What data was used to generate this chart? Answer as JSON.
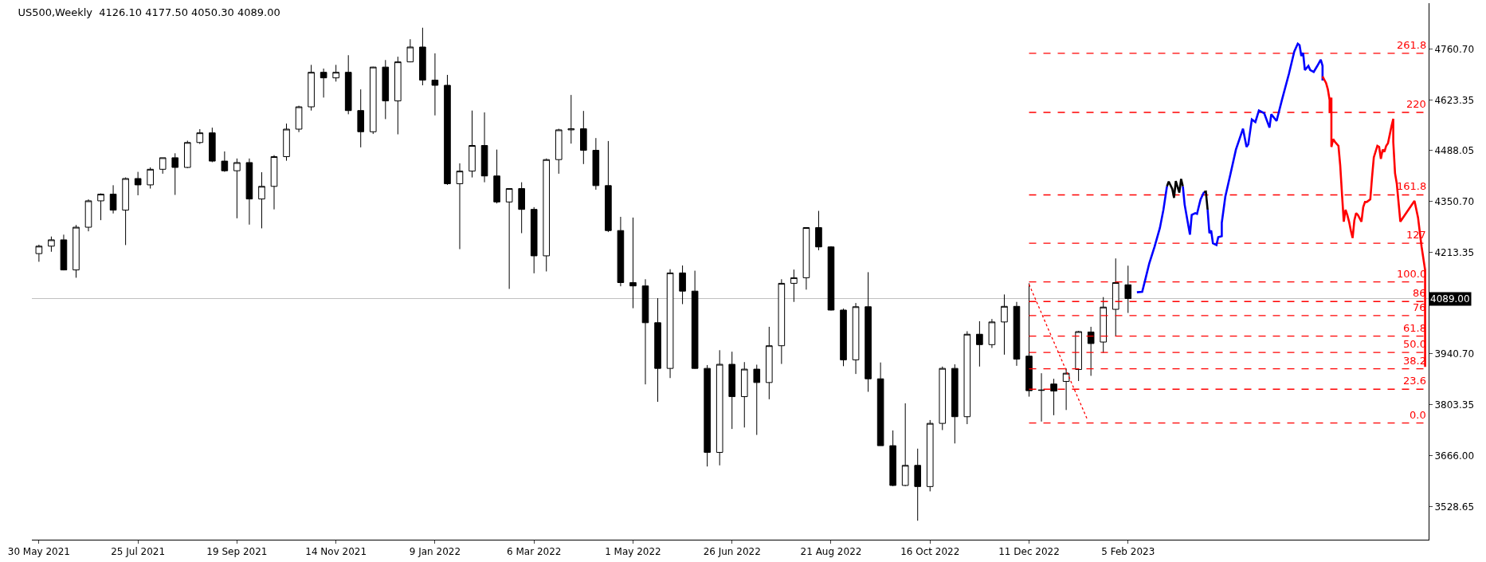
{
  "chart_data": {
    "type": "candlestick",
    "title": "US500,Weekly  4126.10 4177.50 4050.30 4089.00",
    "x": [
      "2021-05-30",
      "2021-06-06",
      "2021-06-13",
      "2021-06-20",
      "2021-06-27",
      "2021-07-04",
      "2021-07-11",
      "2021-07-18",
      "2021-07-25",
      "2021-08-01",
      "2021-08-08",
      "2021-08-15",
      "2021-08-22",
      "2021-08-29",
      "2021-09-05",
      "2021-09-12",
      "2021-09-19",
      "2021-09-26",
      "2021-10-03",
      "2021-10-10",
      "2021-10-17",
      "2021-10-24",
      "2021-10-31",
      "2021-11-07",
      "2021-11-14",
      "2021-11-21",
      "2021-11-28",
      "2021-12-05",
      "2021-12-12",
      "2021-12-19",
      "2021-12-26",
      "2022-01-02",
      "2022-01-09",
      "2022-01-16",
      "2022-01-23",
      "2022-01-30",
      "2022-02-06",
      "2022-02-13",
      "2022-02-20",
      "2022-02-27",
      "2022-03-06",
      "2022-03-13",
      "2022-03-20",
      "2022-03-27",
      "2022-04-03",
      "2022-04-10",
      "2022-04-17",
      "2022-04-24",
      "2022-05-01",
      "2022-05-08",
      "2022-05-15",
      "2022-05-22",
      "2022-05-29",
      "2022-06-05",
      "2022-06-12",
      "2022-06-19",
      "2022-06-26",
      "2022-07-03",
      "2022-07-10",
      "2022-07-17",
      "2022-07-24",
      "2022-07-31",
      "2022-08-07",
      "2022-08-14",
      "2022-08-21",
      "2022-08-28",
      "2022-09-04",
      "2022-09-11",
      "2022-09-18",
      "2022-09-25",
      "2022-10-02",
      "2022-10-09",
      "2022-10-16",
      "2022-10-23",
      "2022-10-30",
      "2022-11-06",
      "2022-11-13",
      "2022-11-20",
      "2022-11-27",
      "2022-12-04",
      "2022-12-11",
      "2022-12-18",
      "2022-12-25",
      "2023-01-01",
      "2023-01-08",
      "2023-01-15",
      "2023-01-22",
      "2023-01-29",
      "2023-02-05"
    ],
    "ohlc": [
      [
        4210,
        4234,
        4188,
        4230
      ],
      [
        4230,
        4256,
        4215,
        4247
      ],
      [
        4247,
        4261,
        4165,
        4166
      ],
      [
        4166,
        4287,
        4145,
        4281
      ],
      [
        4281,
        4356,
        4270,
        4352
      ],
      [
        4352,
        4372,
        4300,
        4370
      ],
      [
        4370,
        4394,
        4318,
        4327
      ],
      [
        4327,
        4415,
        4233,
        4412
      ],
      [
        4412,
        4430,
        4367,
        4395
      ],
      [
        4395,
        4442,
        4385,
        4437
      ],
      [
        4437,
        4468,
        4425,
        4468
      ],
      [
        4468,
        4480,
        4368,
        4442
      ],
      [
        4442,
        4514,
        4440,
        4509
      ],
      [
        4509,
        4545,
        4505,
        4535
      ],
      [
        4535,
        4549,
        4456,
        4459
      ],
      [
        4459,
        4485,
        4430,
        4433
      ],
      [
        4433,
        4466,
        4305,
        4455
      ],
      [
        4455,
        4466,
        4288,
        4357
      ],
      [
        4357,
        4429,
        4278,
        4391
      ],
      [
        4391,
        4475,
        4329,
        4471
      ],
      [
        4471,
        4560,
        4460,
        4545
      ],
      [
        4545,
        4608,
        4537,
        4605
      ],
      [
        4605,
        4718,
        4595,
        4698
      ],
      [
        4698,
        4708,
        4630,
        4683
      ],
      [
        4683,
        4718,
        4673,
        4698
      ],
      [
        4698,
        4744,
        4585,
        4595
      ],
      [
        4595,
        4652,
        4496,
        4538
      ],
      [
        4538,
        4713,
        4532,
        4712
      ],
      [
        4712,
        4731,
        4572,
        4621
      ],
      [
        4621,
        4740,
        4531,
        4726
      ],
      [
        4726,
        4787,
        4725,
        4766
      ],
      [
        4766,
        4818,
        4663,
        4677
      ],
      [
        4677,
        4749,
        4582,
        4663
      ],
      [
        4663,
        4691,
        4395,
        4398
      ],
      [
        4398,
        4453,
        4222,
        4432
      ],
      [
        4432,
        4595,
        4415,
        4501
      ],
      [
        4501,
        4590,
        4402,
        4419
      ],
      [
        4419,
        4490,
        4345,
        4349
      ],
      [
        4349,
        4385,
        4115,
        4385
      ],
      [
        4385,
        4402,
        4265,
        4329
      ],
      [
        4329,
        4335,
        4157,
        4204
      ],
      [
        4204,
        4466,
        4162,
        4463
      ],
      [
        4463,
        4546,
        4425,
        4543
      ],
      [
        4543,
        4637,
        4506,
        4546
      ],
      [
        4546,
        4594,
        4451,
        4488
      ],
      [
        4488,
        4521,
        4382,
        4393
      ],
      [
        4393,
        4513,
        4268,
        4272
      ],
      [
        4272,
        4309,
        4122,
        4132
      ],
      [
        4132,
        4307,
        4063,
        4123
      ],
      [
        4123,
        4141,
        3858,
        4024
      ],
      [
        4024,
        4090,
        3811,
        3901
      ],
      [
        3901,
        4168,
        3875,
        4158
      ],
      [
        4158,
        4178,
        4074,
        4109
      ],
      [
        4109,
        4164,
        3900,
        3901
      ],
      [
        3901,
        3910,
        3637,
        3675
      ],
      [
        3675,
        3950,
        3640,
        3912
      ],
      [
        3912,
        3946,
        3738,
        3825
      ],
      [
        3825,
        3918,
        3742,
        3899
      ],
      [
        3899,
        3911,
        3722,
        3863
      ],
      [
        3863,
        4013,
        3818,
        3962
      ],
      [
        3962,
        4141,
        3913,
        4130
      ],
      [
        4130,
        4167,
        4080,
        4145
      ],
      [
        4145,
        4280,
        4113,
        4280
      ],
      [
        4280,
        4325,
        4219,
        4228
      ],
      [
        4228,
        4230,
        4057,
        4058
      ],
      [
        4058,
        4062,
        3907,
        3924
      ],
      [
        3924,
        4077,
        3886,
        4067
      ],
      [
        4067,
        4160,
        3838,
        3873
      ],
      [
        3873,
        3917,
        3693,
        3693
      ],
      [
        3693,
        3734,
        3584,
        3586
      ],
      [
        3586,
        3807,
        3584,
        3640
      ],
      [
        3640,
        3685,
        3491,
        3583
      ],
      [
        3583,
        3762,
        3570,
        3753
      ],
      [
        3753,
        3906,
        3735,
        3901
      ],
      [
        3901,
        3912,
        3699,
        3771
      ],
      [
        3771,
        4001,
        3751,
        3993
      ],
      [
        3993,
        4028,
        3906,
        3965
      ],
      [
        3965,
        4034,
        3956,
        4026
      ],
      [
        4026,
        4100,
        3938,
        4068
      ],
      [
        4068,
        4080,
        3908,
        3926
      ],
      [
        3934,
        4130,
        3825,
        3841
      ],
      [
        3843,
        3888,
        3758,
        3842
      ],
      [
        3859,
        3873,
        3775,
        3840
      ],
      [
        3866,
        3901,
        3789,
        3888
      ],
      [
        3898,
        4002,
        3867,
        4000
      ],
      [
        3999,
        4013,
        3881,
        3968
      ],
      [
        3972,
        4093,
        3943,
        4066
      ],
      [
        4060,
        4197,
        3989,
        4132
      ],
      [
        4126.1,
        4177.5,
        4050.3,
        4089.0
      ]
    ],
    "xlim": [
      "2021-05-26",
      "2023-07-25"
    ],
    "ylim": [
      3440,
      4884
    ],
    "xticks": [
      {
        "value": "2021-05-30",
        "label": "30 May 2021"
      },
      {
        "value": "2021-07-25",
        "label": "25 Jul 2021"
      },
      {
        "value": "2021-09-19",
        "label": "19 Sep 2021"
      },
      {
        "value": "2021-11-14",
        "label": "14 Nov 2021"
      },
      {
        "value": "2022-01-09",
        "label": "9 Jan 2022"
      },
      {
        "value": "2022-03-06",
        "label": "6 Mar 2022"
      },
      {
        "value": "2022-05-01",
        "label": "1 May 2022"
      },
      {
        "value": "2022-06-26",
        "label": "26 Jun 2022"
      },
      {
        "value": "2022-08-21",
        "label": "21 Aug 2022"
      },
      {
        "value": "2022-10-16",
        "label": "16 Oct 2022"
      },
      {
        "value": "2022-12-11",
        "label": "11 Dec 2022"
      },
      {
        "value": "2023-02-05",
        "label": "5 Feb 2023"
      }
    ],
    "yticks": [
      {
        "value": 3528.65,
        "label": "3528.65"
      },
      {
        "value": 3666.0,
        "label": "3666.00"
      },
      {
        "value": 3803.35,
        "label": "3803.35"
      },
      {
        "value": 3940.7,
        "label": "3940.70"
      },
      {
        "value": 4213.35,
        "label": "4213.35"
      },
      {
        "value": 4350.7,
        "label": "4350.70"
      },
      {
        "value": 4488.05,
        "label": "4488.05"
      },
      {
        "value": 4623.35,
        "label": "4623.35"
      },
      {
        "value": 4760.7,
        "label": "4760.70"
      }
    ],
    "ref_lines": [
      {
        "axis": "y",
        "value": 4089.0,
        "label": "4089.00",
        "color": "#c0c0c0"
      }
    ],
    "grid": false,
    "series": [
      {
        "type": "line",
        "name": "0.0",
        "color": "#ff0000",
        "line_style": "dashed",
        "x": [
          "2022-12-11",
          "2023-07-25"
        ],
        "values": [
          3754,
          3754
        ]
      },
      {
        "type": "line",
        "name": "23.6",
        "color": "#ff0000",
        "line_style": "dashed",
        "x": [
          "2022-12-11",
          "2023-07-25"
        ],
        "values": [
          3845,
          3845
        ]
      },
      {
        "type": "line",
        "name": "38.2",
        "color": "#ff0000",
        "line_style": "dashed",
        "x": [
          "2022-12-11",
          "2023-07-25"
        ],
        "values": [
          3900,
          3900
        ]
      },
      {
        "type": "line",
        "name": "50.0",
        "color": "#ff0000",
        "line_style": "dashed",
        "x": [
          "2022-12-11",
          "2023-07-25"
        ],
        "values": [
          3944,
          3944
        ]
      },
      {
        "type": "line",
        "name": "61.8",
        "color": "#ff0000",
        "line_style": "dashed",
        "x": [
          "2022-12-11",
          "2023-07-25"
        ],
        "values": [
          3988,
          3988
        ]
      },
      {
        "type": "line",
        "name": "76",
        "color": "#ff0000",
        "line_style": "dashed",
        "x": [
          "2022-12-11",
          "2023-07-25"
        ],
        "values": [
          4043,
          4043
        ]
      },
      {
        "type": "line",
        "name": "86",
        "color": "#ff0000",
        "line_style": "dashed",
        "x": [
          "2022-12-11",
          "2023-07-25"
        ],
        "values": [
          4081,
          4081
        ]
      },
      {
        "type": "line",
        "name": "100.0",
        "color": "#ff0000",
        "line_style": "dashed",
        "x": [
          "2022-12-11",
          "2023-07-25"
        ],
        "values": [
          4134,
          4134
        ]
      },
      {
        "type": "line",
        "name": "127",
        "color": "#ff0000",
        "line_style": "dashed",
        "x": [
          "2022-12-11",
          "2023-07-25"
        ],
        "values": [
          4238,
          4238
        ]
      },
      {
        "type": "line",
        "name": "161.8",
        "color": "#ff0000",
        "line_style": "dashed",
        "x": [
          "2022-12-11",
          "2023-07-25"
        ],
        "values": [
          4368,
          4368
        ]
      },
      {
        "type": "line",
        "name": "220",
        "color": "#ff0000",
        "line_style": "dashed",
        "x": [
          "2022-12-11",
          "2023-07-25"
        ],
        "values": [
          4590,
          4590
        ]
      },
      {
        "type": "line",
        "name": "261.8",
        "color": "#ff0000",
        "line_style": "dashed",
        "x": [
          "2022-12-11",
          "2023-07-25"
        ],
        "values": [
          4749,
          4749
        ]
      },
      {
        "type": "line",
        "color": "#ff0000",
        "line_style": "dotted",
        "x": [
          "2022-12-11",
          "2023-01-13"
        ],
        "values": [
          4127,
          3763
        ]
      },
      {
        "type": "line",
        "color": "#0000ff",
        "line_style": "solid",
        "x": [
          "2023-02-10",
          "2023-02-13",
          "2023-02-15",
          "2023-02-17",
          "2023-02-20",
          "2023-02-23",
          "2023-02-25",
          "2023-02-27"
        ],
        "values": [
          4106,
          4107,
          4145,
          4184,
          4229,
          4279,
          4328,
          4391
        ]
      },
      {
        "type": "line",
        "color": "#000000",
        "line_style": "solid",
        "x": [
          "2023-02-27",
          "2023-02-28",
          "2023-03-02",
          "2023-03-03",
          "2023-03-04",
          "2023-03-06",
          "2023-03-07",
          "2023-03-08"
        ],
        "values": [
          4391,
          4404,
          4384,
          4360,
          4405,
          4374,
          4411,
          4391
        ]
      },
      {
        "type": "line",
        "color": "#0000ff",
        "line_style": "solid",
        "x": [
          "2023-03-08",
          "2023-03-09",
          "2023-03-12",
          "2023-03-13",
          "2023-03-15",
          "2023-03-16",
          "2023-03-18",
          "2023-03-20"
        ],
        "values": [
          4391,
          4342,
          4261,
          4314,
          4319,
          4317,
          4356,
          4376
        ]
      },
      {
        "type": "line",
        "color": "#000000",
        "line_style": "solid",
        "x": [
          "2023-03-20",
          "2023-03-21",
          "2023-03-22"
        ],
        "values": [
          4376,
          4377,
          4328
        ]
      },
      {
        "type": "line",
        "color": "#0000ff",
        "line_style": "solid",
        "x": [
          "2023-03-22",
          "2023-03-23",
          "2023-03-24",
          "2023-03-25",
          "2023-03-27",
          "2023-03-28",
          "2023-03-30",
          "2023-03-30",
          "2023-04-01",
          "2023-04-04",
          "2023-04-07",
          "2023-04-11",
          "2023-04-13",
          "2023-04-14",
          "2023-04-16",
          "2023-04-18",
          "2023-04-20",
          "2023-04-23",
          "2023-04-26",
          "2023-04-27",
          "2023-04-30",
          "2023-05-03",
          "2023-05-07",
          "2023-05-10",
          "2023-05-12",
          "2023-05-13",
          "2023-05-14",
          "2023-05-15",
          "2023-05-16",
          "2023-05-18",
          "2023-05-19",
          "2023-05-21",
          "2023-05-23",
          "2023-05-25",
          "2023-05-26",
          "2023-05-26"
        ],
        "values": [
          4328,
          4265,
          4272,
          4238,
          4233,
          4254,
          4257,
          4293,
          4363,
          4426,
          4490,
          4546,
          4497,
          4504,
          4571,
          4564,
          4595,
          4588,
          4549,
          4585,
          4567,
          4623,
          4694,
          4754,
          4775,
          4771,
          4742,
          4750,
          4704,
          4715,
          4704,
          4699,
          4715,
          4732,
          4715,
          4676
        ]
      },
      {
        "type": "line",
        "color": "#ff0000",
        "line_style": "solid",
        "x": [
          "2023-05-26",
          "2023-05-28",
          "2023-05-29",
          "2023-05-30",
          "2023-05-30",
          "2023-05-31",
          "2023-05-31",
          "2023-06-01",
          "2023-06-02",
          "2023-06-04",
          "2023-06-05",
          "2023-06-06",
          "2023-06-07",
          "2023-06-08",
          "2023-06-09",
          "2023-06-10",
          "2023-06-11",
          "2023-06-12",
          "2023-06-13",
          "2023-06-14",
          "2023-06-15",
          "2023-06-17",
          "2023-06-18",
          "2023-06-19",
          "2023-06-20",
          "2023-06-22",
          "2023-06-23",
          "2023-06-24",
          "2023-06-26",
          "2023-06-27",
          "2023-06-28",
          "2023-06-29",
          "2023-06-30",
          "2023-07-01",
          "2023-07-02",
          "2023-07-04",
          "2023-07-05",
          "2023-07-05",
          "2023-07-06",
          "2023-07-07",
          "2023-07-09",
          "2023-07-11",
          "2023-07-14",
          "2023-07-17",
          "2023-07-19",
          "2023-07-21",
          "2023-07-23",
          "2023-07-23",
          "2023-07-23"
        ],
        "values": [
          4687,
          4669,
          4652,
          4623,
          4588,
          4630,
          4497,
          4518,
          4511,
          4500,
          4447,
          4370,
          4296,
          4328,
          4314,
          4296,
          4272,
          4252,
          4300,
          4319,
          4314,
          4296,
          4335,
          4349,
          4349,
          4356,
          4416,
          4469,
          4500,
          4497,
          4465,
          4490,
          4484,
          4500,
          4507,
          4553,
          4573,
          4511,
          4426,
          4398,
          4296,
          4310,
          4331,
          4352,
          4307,
          4229,
          4166,
          4046,
          3905
        ]
      }
    ]
  }
}
